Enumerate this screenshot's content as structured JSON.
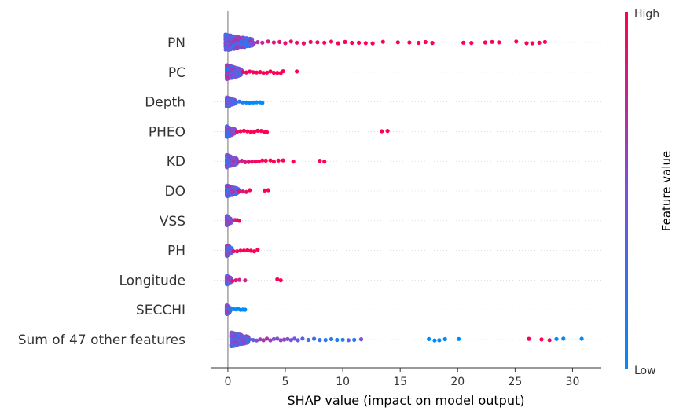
{
  "chart_data": {
    "type": "scatter",
    "subtype": "shap-beeswarm",
    "title": "",
    "xlabel": "SHAP value (impact on model output)",
    "ylabel": "",
    "xlim": [
      -1.5,
      32.5
    ],
    "xticks": [
      0,
      5,
      10,
      15,
      20,
      25,
      30
    ],
    "grid": false,
    "features": [
      {
        "name": "PN",
        "core": [
          -0.2,
          2.2
        ],
        "band": 10,
        "sparse": [
          [
            2.3,
            0.6
          ],
          [
            2.6,
            0.7
          ],
          [
            3.0,
            0.75
          ],
          [
            3.5,
            0.8
          ],
          [
            4.0,
            0.85
          ],
          [
            4.5,
            0.88
          ],
          [
            5.0,
            0.9
          ],
          [
            5.5,
            0.92
          ],
          [
            6.0,
            0.93
          ],
          [
            6.6,
            0.95
          ],
          [
            7.2,
            0.95
          ],
          [
            7.8,
            0.96
          ],
          [
            8.4,
            0.97
          ],
          [
            9.0,
            0.97
          ],
          [
            9.6,
            0.98
          ],
          [
            10.2,
            0.98
          ],
          [
            10.8,
            0.99
          ],
          [
            11.4,
            0.99
          ],
          [
            12.0,
            1.0
          ],
          [
            12.6,
            1.0
          ],
          [
            13.5,
            1.0
          ],
          [
            14.8,
            1.0
          ],
          [
            15.8,
            1.0
          ],
          [
            16.6,
            1.0
          ],
          [
            17.2,
            1.0
          ],
          [
            17.8,
            1.0
          ],
          [
            20.5,
            1.0
          ],
          [
            21.2,
            1.0
          ],
          [
            22.4,
            1.0
          ],
          [
            23.0,
            1.0
          ],
          [
            23.6,
            1.0
          ],
          [
            25.1,
            1.0
          ],
          [
            26.0,
            1.0
          ],
          [
            26.5,
            1.0
          ],
          [
            27.1,
            1.0
          ],
          [
            27.6,
            1.0
          ]
        ]
      },
      {
        "name": "PC",
        "core": [
          -0.1,
          1.2
        ],
        "band": 9,
        "sparse": [
          [
            1.3,
            0.9
          ],
          [
            1.6,
            0.95
          ],
          [
            1.9,
            0.95
          ],
          [
            2.2,
            0.97
          ],
          [
            2.5,
            1.0
          ],
          [
            2.8,
            1.0
          ],
          [
            3.1,
            1.0
          ],
          [
            3.4,
            1.0
          ],
          [
            3.7,
            1.0
          ],
          [
            4.0,
            1.0
          ],
          [
            4.3,
            1.0
          ],
          [
            4.6,
            1.0
          ],
          [
            4.8,
            1.0
          ],
          [
            6.0,
            1.0
          ]
        ]
      },
      {
        "name": "Depth",
        "core": [
          -0.1,
          0.6
        ],
        "band": 6,
        "sparse": [
          [
            0.7,
            0.2
          ],
          [
            1.0,
            0.15
          ],
          [
            1.3,
            0.1
          ],
          [
            1.6,
            0.05
          ],
          [
            1.9,
            0.05
          ],
          [
            2.2,
            0.0
          ],
          [
            2.5,
            0.0
          ],
          [
            2.8,
            0.0
          ],
          [
            3.0,
            0.0
          ]
        ]
      },
      {
        "name": "PHEO",
        "core": [
          -0.1,
          0.6
        ],
        "band": 7,
        "sparse": [
          [
            0.8,
            0.9
          ],
          [
            1.1,
            0.95
          ],
          [
            1.4,
            1.0
          ],
          [
            1.7,
            1.0
          ],
          [
            2.0,
            1.0
          ],
          [
            2.3,
            1.0
          ],
          [
            2.6,
            1.0
          ],
          [
            2.9,
            1.0
          ],
          [
            3.2,
            1.0
          ],
          [
            3.4,
            1.0
          ],
          [
            13.4,
            1.0
          ],
          [
            13.9,
            1.0
          ]
        ]
      },
      {
        "name": "KD",
        "core": [
          -0.1,
          0.8
        ],
        "band": 8,
        "sparse": [
          [
            0.9,
            0.7
          ],
          [
            1.2,
            0.8
          ],
          [
            1.5,
            0.85
          ],
          [
            1.8,
            0.9
          ],
          [
            2.1,
            0.9
          ],
          [
            2.4,
            0.95
          ],
          [
            2.7,
            0.95
          ],
          [
            3.0,
            1.0
          ],
          [
            3.3,
            1.0
          ],
          [
            3.7,
            1.0
          ],
          [
            4.0,
            1.0
          ],
          [
            4.4,
            1.0
          ],
          [
            4.8,
            1.0
          ],
          [
            5.7,
            1.0
          ],
          [
            8.0,
            1.0
          ],
          [
            8.4,
            1.0
          ]
        ]
      },
      {
        "name": "DO",
        "core": [
          -0.1,
          0.9
        ],
        "band": 7,
        "sparse": [
          [
            1.0,
            0.85
          ],
          [
            1.3,
            0.85
          ],
          [
            1.6,
            0.9
          ],
          [
            1.9,
            1.0
          ],
          [
            3.2,
            1.0
          ],
          [
            3.5,
            1.0
          ]
        ]
      },
      {
        "name": "VSS",
        "core": [
          -0.1,
          0.3
        ],
        "band": 6,
        "sparse": [
          [
            0.4,
            0.6
          ],
          [
            0.6,
            0.8
          ],
          [
            0.8,
            0.9
          ],
          [
            1.0,
            1.0
          ]
        ]
      },
      {
        "name": "PH",
        "core": [
          -0.1,
          0.4
        ],
        "band": 7,
        "sparse": [
          [
            0.5,
            0.9
          ],
          [
            0.8,
            0.92
          ],
          [
            1.1,
            0.95
          ],
          [
            1.4,
            1.0
          ],
          [
            1.7,
            1.0
          ],
          [
            2.0,
            1.0
          ],
          [
            2.3,
            1.0
          ],
          [
            2.6,
            1.0
          ]
        ]
      },
      {
        "name": "Longitude",
        "core": [
          -0.1,
          0.3
        ],
        "band": 6,
        "sparse": [
          [
            0.4,
            0.9
          ],
          [
            0.7,
            0.85
          ],
          [
            1.0,
            0.8
          ],
          [
            1.5,
            0.8
          ],
          [
            4.3,
            1.0
          ],
          [
            4.6,
            1.0
          ]
        ]
      },
      {
        "name": "SECCHI",
        "core": [
          -0.1,
          0.2
        ],
        "band": 6,
        "sparse": [
          [
            0.3,
            0.1
          ],
          [
            0.5,
            0.05
          ],
          [
            0.7,
            0.0
          ],
          [
            0.9,
            0.0
          ],
          [
            1.1,
            0.0
          ],
          [
            1.3,
            0.0
          ],
          [
            1.5,
            0.0
          ]
        ]
      },
      {
        "name": "Sum of 47 other features",
        "core": [
          0.3,
          1.8
        ],
        "band": 9,
        "sparse": [
          [
            1.9,
            0.3
          ],
          [
            2.2,
            0.4
          ],
          [
            2.5,
            0.5
          ],
          [
            2.8,
            0.6
          ],
          [
            3.1,
            0.7
          ],
          [
            3.4,
            0.7
          ],
          [
            3.7,
            0.6
          ],
          [
            4.0,
            0.5
          ],
          [
            4.3,
            0.5
          ],
          [
            4.6,
            0.6
          ],
          [
            4.9,
            0.6
          ],
          [
            5.2,
            0.5
          ],
          [
            5.5,
            0.55
          ],
          [
            5.8,
            0.45
          ],
          [
            6.1,
            0.4
          ],
          [
            6.5,
            0.35
          ],
          [
            7.0,
            0.3
          ],
          [
            7.5,
            0.25
          ],
          [
            8.0,
            0.2
          ],
          [
            8.5,
            0.15
          ],
          [
            9.0,
            0.15
          ],
          [
            9.5,
            0.1
          ],
          [
            10.0,
            0.1
          ],
          [
            10.5,
            0.4
          ],
          [
            11.0,
            0.1
          ],
          [
            11.6,
            0.5
          ],
          [
            17.5,
            0.0
          ],
          [
            18.0,
            0.0
          ],
          [
            18.4,
            0.0
          ],
          [
            18.9,
            0.0
          ],
          [
            20.1,
            0.0
          ],
          [
            26.2,
            1.0
          ],
          [
            27.3,
            1.0
          ],
          [
            28.0,
            1.0
          ],
          [
            28.6,
            0.0
          ],
          [
            29.2,
            0.0
          ],
          [
            30.8,
            0.0
          ]
        ]
      }
    ],
    "colorbar": {
      "label": "Feature value",
      "high_label": "High",
      "low_label": "Low",
      "low_color": "#008bfb",
      "mid_color": "#7c52d9",
      "high_color": "#ff0052"
    },
    "zero_line_color": "#999999"
  }
}
